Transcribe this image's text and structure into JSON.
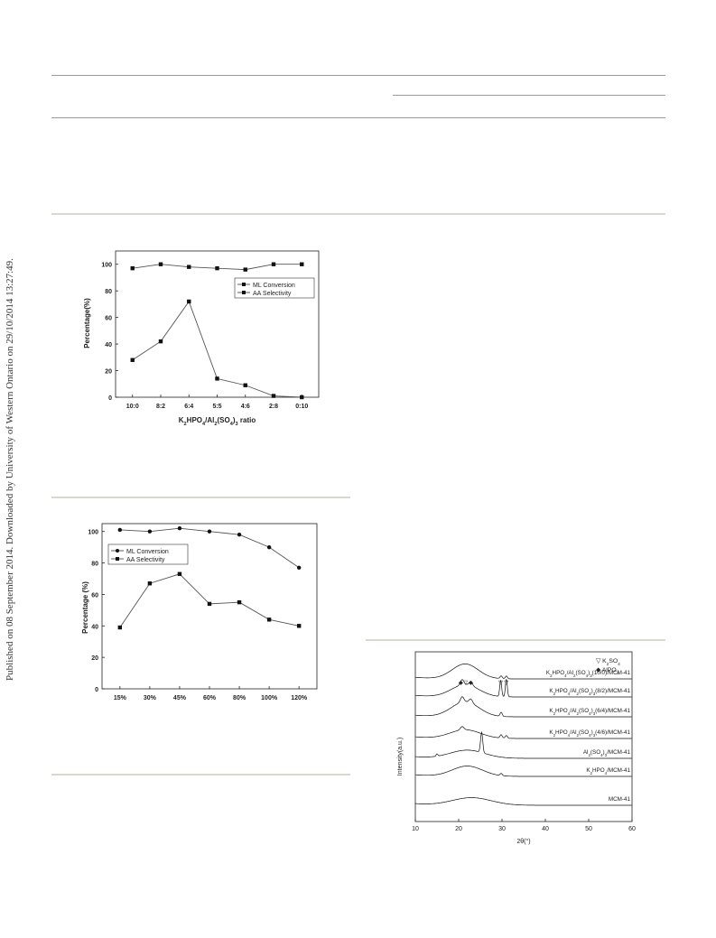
{
  "side_note": "Published on 08 September 2014. Downloaded by University of Western Ontario on 29/10/2014 13:27:49.",
  "chart_data": [
    {
      "type": "line",
      "categories": [
        "10:0",
        "8:2",
        "6:4",
        "5:5",
        "4:6",
        "2:8",
        "0:10"
      ],
      "xlabel": "K₂HPO₄/Al₂(SO₄)₃ ratio",
      "ylabel": "Percentage(%)",
      "ylim": [
        0,
        110
      ],
      "yticks": [
        0,
        20,
        40,
        60,
        80,
        100
      ],
      "grid": false,
      "legend_position": "top-right",
      "series": [
        {
          "name": "ML Conversion",
          "values": [
            28,
            42,
            72,
            14,
            9,
            1,
            0
          ]
        },
        {
          "name": "AA Selectivity",
          "values": [
            97,
            100,
            98,
            97,
            96,
            100,
            100
          ]
        }
      ]
    },
    {
      "type": "line",
      "categories": [
        "15%",
        "30%",
        "45%",
        "60%",
        "80%",
        "100%",
        "120%"
      ],
      "xlabel": "",
      "ylabel": "Percentage (%)",
      "ylim": [
        0,
        105
      ],
      "yticks": [
        0,
        20,
        40,
        60,
        80,
        100
      ],
      "grid": false,
      "legend_position": "top-left",
      "series": [
        {
          "name": "ML Conversion",
          "values": [
            101,
            100,
            102,
            100,
            98,
            90,
            77
          ]
        },
        {
          "name": "AA Selectivity",
          "values": [
            39,
            67,
            73,
            54,
            55,
            44,
            40
          ]
        }
      ]
    },
    {
      "type": "line",
      "xlabel": "2θ(°)",
      "ylabel": "Intensity(a.u.)",
      "xlim": [
        10,
        60
      ],
      "xticks": [
        10,
        20,
        30,
        40,
        50,
        60
      ],
      "grid": false,
      "legend": [
        {
          "symbol": "▽",
          "label": "K₂SO₄"
        },
        {
          "symbol": "◆",
          "label": "AlPO₄"
        }
      ],
      "peak_markers": [
        {
          "symbol": "◆",
          "x": 20.5
        },
        {
          "symbol": "▽",
          "x": 21.6
        },
        {
          "symbol": "◆",
          "x": 22.8
        },
        {
          "symbol": "▽",
          "x": 29.7
        },
        {
          "symbol": "▽",
          "x": 31.0
        }
      ],
      "series": [
        {
          "name": "MCM-41",
          "broad": [
            [
              23,
              0.28,
              4.5
            ]
          ],
          "peaks": []
        },
        {
          "name": "K₂HPO₄/MCM-41",
          "broad": [
            [
              22,
              0.38,
              3.5
            ]
          ],
          "peaks": [
            [
              29.8,
              0.08,
              0.25
            ]
          ]
        },
        {
          "name": "Al₂(SO₄)₃/MCM-41",
          "broad": [
            [
              22,
              0.3,
              4
            ]
          ],
          "peaks": [
            [
              25.3,
              0.75,
              0.25
            ],
            [
              15,
              0.08,
              0.2
            ]
          ]
        },
        {
          "name": "K₂HPO₄/Al₂(SO₄)₃(4/6)/MCM-41",
          "broad": [
            [
              21.5,
              0.32,
              3.5
            ]
          ],
          "peaks": [
            [
              20.8,
              0.12,
              0.4
            ],
            [
              29.8,
              0.12,
              0.25
            ],
            [
              31,
              0.1,
              0.25
            ]
          ]
        },
        {
          "name": "K₂HPO₄/Al₂(SO₄)₃(6/4)/MCM-41",
          "broad": [
            [
              21.5,
              0.55,
              3.2
            ]
          ],
          "peaks": [
            [
              20.8,
              0.2,
              0.4
            ],
            [
              22.8,
              0.15,
              0.4
            ],
            [
              29.8,
              0.15,
              0.25
            ]
          ]
        },
        {
          "name": "K₂HPO₄/Al₂(SO₄)₃(8/2)/MCM-41",
          "broad": [
            [
              21.5,
              0.45,
              3.2
            ]
          ],
          "peaks": [
            [
              20.8,
              0.2,
              0.4
            ],
            [
              22.8,
              0.15,
              0.4
            ],
            [
              29.7,
              0.6,
              0.22
            ],
            [
              31,
              0.65,
              0.22
            ]
          ]
        },
        {
          "name": "K₂HPO₄/Al₂(SO₄)₃(10/0)/MCM-41",
          "broad": [
            [
              21.5,
              0.55,
              3
            ]
          ],
          "peaks": [
            [
              29.8,
              0.1,
              0.25
            ],
            [
              31,
              0.1,
              0.25
            ]
          ]
        }
      ]
    }
  ]
}
